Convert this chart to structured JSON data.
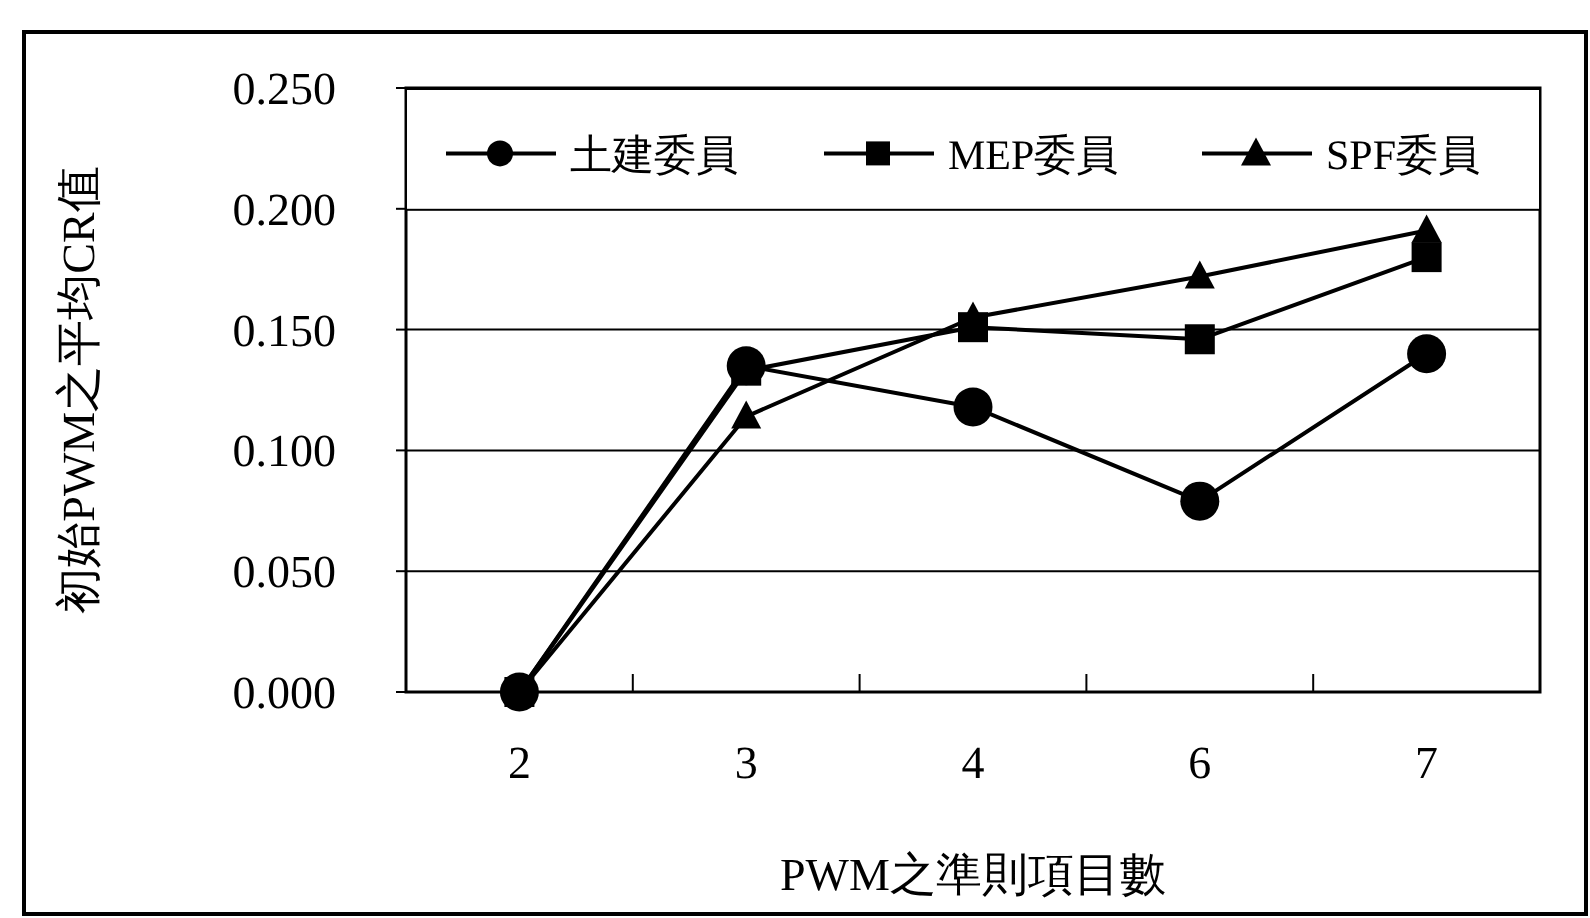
{
  "chart_data": {
    "type": "line",
    "xlabel": "PWM之準則項目數",
    "ylabel": "初始PWM之平均CR值",
    "categories": [
      "2",
      "3",
      "4",
      "6",
      "7"
    ],
    "series": [
      {
        "name": "土建委員",
        "color": "#000000",
        "marker": "circle",
        "values": [
          0.0,
          0.135,
          0.118,
          0.079,
          0.14
        ]
      },
      {
        "name": "MEP委員",
        "color": "#000000",
        "marker": "square",
        "values": [
          0.0,
          0.133,
          0.151,
          0.146,
          0.18
        ]
      },
      {
        "name": "SPF委員",
        "color": "#000000",
        "marker": "triangle",
        "values": [
          0.0,
          0.114,
          0.155,
          0.172,
          0.191
        ]
      }
    ],
    "ylim": [
      0,
      0.25
    ],
    "yticks": [
      {
        "value": 0,
        "label": "0.000"
      },
      {
        "value": 0.05,
        "label": "0.050"
      },
      {
        "value": 0.1,
        "label": "0.100"
      },
      {
        "value": 0.15,
        "label": "0.150"
      },
      {
        "value": 0.2,
        "label": "0.200"
      },
      {
        "value": 0.25,
        "label": "0.250"
      }
    ],
    "grid": "y",
    "legend": "top",
    "line_style": "solid"
  }
}
